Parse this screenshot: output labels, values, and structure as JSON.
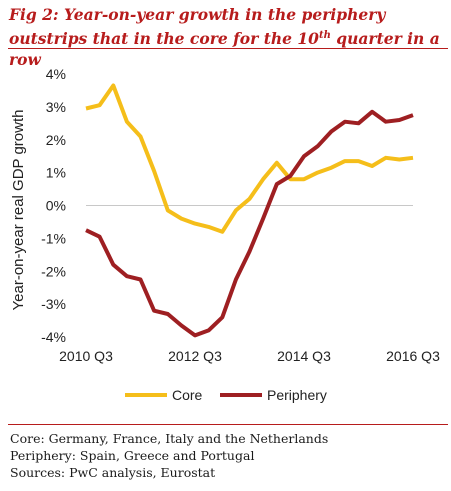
{
  "figure": {
    "title_prefix": "Fig 2: Year-on-year growth in the  periphery outstrips that in the core for the 10",
    "title_superscript": "th",
    "title_suffix": " quarter in a row"
  },
  "notes": {
    "core": "Core: Germany, France, Italy and the Netherlands",
    "periphery": "Periphery: Spain, Greece and Portugal",
    "sources": "Sources: PwC analysis, Eurostat"
  },
  "colors": {
    "core": "#f5be1a",
    "periphery": "#9e1f22",
    "title": "#b71c1c"
  },
  "chart_data": {
    "type": "line",
    "ylabel": "Year-on-year real GDP growth",
    "xlabel": "",
    "ylim": [
      -4,
      4
    ],
    "yticks": [
      -4,
      -3,
      -2,
      -1,
      0,
      1,
      2,
      3,
      4
    ],
    "ytick_labels": [
      "-4%",
      "-3%",
      "-2%",
      "-1%",
      "0%",
      "1%",
      "2%",
      "3%",
      "4%"
    ],
    "x": [
      "2010 Q3",
      "2010 Q4",
      "2011 Q1",
      "2011 Q2",
      "2011 Q3",
      "2011 Q4",
      "2012 Q1",
      "2012 Q2",
      "2012 Q3",
      "2012 Q4",
      "2013 Q1",
      "2013 Q2",
      "2013 Q3",
      "2013 Q4",
      "2014 Q1",
      "2014 Q2",
      "2014 Q3",
      "2014 Q4",
      "2015 Q1",
      "2015 Q2",
      "2015 Q3",
      "2015 Q4",
      "2016 Q1",
      "2016 Q2",
      "2016 Q3"
    ],
    "xtick_labels": [
      "2010 Q3",
      "2012 Q3",
      "2014 Q3",
      "2016 Q3"
    ],
    "xtick_indices": [
      0,
      8,
      16,
      24
    ],
    "series": [
      {
        "name": "Core",
        "values": [
          2.95,
          3.05,
          3.65,
          2.55,
          2.1,
          1.05,
          -0.15,
          -0.4,
          -0.55,
          -0.65,
          -0.8,
          -0.15,
          0.2,
          0.8,
          1.3,
          0.8,
          0.8,
          1.0,
          1.15,
          1.35,
          1.35,
          1.2,
          1.45,
          1.4,
          1.45
        ]
      },
      {
        "name": "Periphery",
        "values": [
          -0.75,
          -0.95,
          -1.8,
          -2.15,
          -2.25,
          -3.2,
          -3.3,
          -3.65,
          -3.95,
          -3.8,
          -3.4,
          -2.25,
          -1.4,
          -0.4,
          0.65,
          0.9,
          1.5,
          1.8,
          2.25,
          2.55,
          2.5,
          2.85,
          2.55,
          2.6,
          2.75
        ]
      }
    ],
    "legend_position": "bottom",
    "grid": false
  }
}
